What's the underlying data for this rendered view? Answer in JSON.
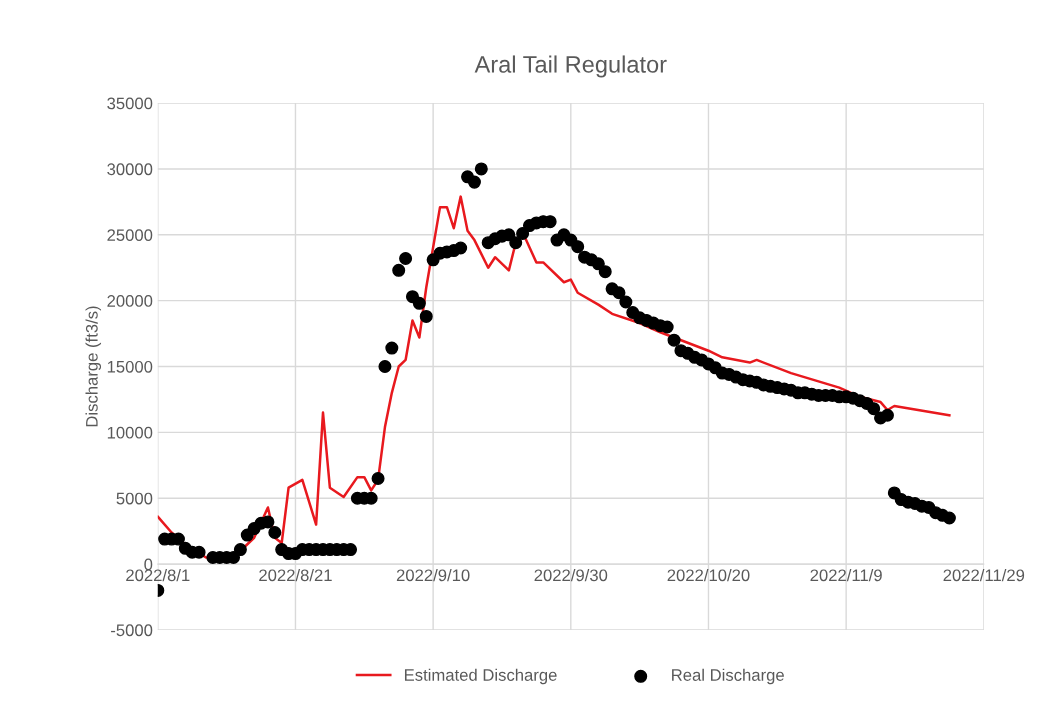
{
  "chart_data": {
    "type": "line",
    "title": "Aral Tail Regulator",
    "ylabel": "Discharge (ft3/s)",
    "xlim": [
      "2022-08-01",
      "2022-11-29"
    ],
    "xticks": [
      {
        "value": "2022-08-01",
        "label": "2022/8/1"
      },
      {
        "value": "2022-08-21",
        "label": "2022/8/21"
      },
      {
        "value": "2022-09-10",
        "label": "2022/9/10"
      },
      {
        "value": "2022-09-30",
        "label": "2022/9/30"
      },
      {
        "value": "2022-10-20",
        "label": "2022/10/20"
      },
      {
        "value": "2022-11-09",
        "label": "2022/11/9"
      },
      {
        "value": "2022-11-29",
        "label": "2022/11/29"
      }
    ],
    "ylim": [
      -5000,
      35000
    ],
    "yticks": [
      -5000,
      0,
      5000,
      10000,
      15000,
      20000,
      25000,
      30000,
      35000
    ],
    "grid": true,
    "legend": "bottom",
    "series": [
      {
        "name": "Estimated Discharge",
        "color": "#e8191e",
        "marker": "none",
        "line_style": "solid",
        "x": [
          "2022-08-01",
          "2022-08-03",
          "2022-08-05",
          "2022-08-08",
          "2022-08-12",
          "2022-08-15",
          "2022-08-17",
          "2022-08-18",
          "2022-08-19",
          "2022-08-20",
          "2022-08-22",
          "2022-08-24",
          "2022-08-25",
          "2022-08-26",
          "2022-08-28",
          "2022-08-30",
          "2022-08-31",
          "2022-09-01",
          "2022-09-02",
          "2022-09-03",
          "2022-09-04",
          "2022-09-05",
          "2022-09-06",
          "2022-09-07",
          "2022-09-08",
          "2022-09-09",
          "2022-09-11",
          "2022-09-12",
          "2022-09-13",
          "2022-09-14",
          "2022-09-15",
          "2022-09-16",
          "2022-09-18",
          "2022-09-19",
          "2022-09-21",
          "2022-09-22",
          "2022-09-23",
          "2022-09-25",
          "2022-09-26",
          "2022-09-29",
          "2022-09-30",
          "2022-10-01",
          "2022-10-04",
          "2022-10-06",
          "2022-10-10",
          "2022-10-13",
          "2022-10-20",
          "2022-10-22",
          "2022-10-26",
          "2022-10-27",
          "2022-11-01",
          "2022-11-08",
          "2022-11-11",
          "2022-11-14",
          "2022-11-15",
          "2022-11-16",
          "2022-11-24"
        ],
        "values": [
          3600,
          2400,
          1500,
          500,
          500,
          2000,
          4300,
          2000,
          1600,
          5800,
          6400,
          3000,
          11500,
          5800,
          5100,
          6600,
          6600,
          5600,
          6400,
          10400,
          13000,
          15000,
          15500,
          18500,
          17200,
          21000,
          27100,
          27100,
          25500,
          27900,
          25300,
          24600,
          22500,
          23300,
          22300,
          24400,
          25200,
          22900,
          22900,
          21400,
          21600,
          20600,
          19700,
          19000,
          18300,
          17600,
          16200,
          15700,
          15300,
          15500,
          14500,
          13400,
          12700,
          12300,
          11700,
          12000,
          11300
        ]
      },
      {
        "name": "Real Discharge",
        "type": "scatter",
        "color": "#000000",
        "marker": "circle",
        "x": [
          "2022-08-01",
          "2022-08-02",
          "2022-08-03",
          "2022-08-04",
          "2022-08-05",
          "2022-08-06",
          "2022-08-07",
          "2022-08-09",
          "2022-08-10",
          "2022-08-11",
          "2022-08-12",
          "2022-08-13",
          "2022-08-14",
          "2022-08-15",
          "2022-08-16",
          "2022-08-17",
          "2022-08-18",
          "2022-08-19",
          "2022-08-20",
          "2022-08-21",
          "2022-08-22",
          "2022-08-23",
          "2022-08-24",
          "2022-08-25",
          "2022-08-26",
          "2022-08-27",
          "2022-08-28",
          "2022-08-29",
          "2022-08-30",
          "2022-08-31",
          "2022-09-01",
          "2022-09-02",
          "2022-09-03",
          "2022-09-04",
          "2022-09-05",
          "2022-09-06",
          "2022-09-07",
          "2022-09-08",
          "2022-09-09",
          "2022-09-10",
          "2022-09-11",
          "2022-09-12",
          "2022-09-13",
          "2022-09-14",
          "2022-09-15",
          "2022-09-16",
          "2022-09-17",
          "2022-09-18",
          "2022-09-19",
          "2022-09-20",
          "2022-09-21",
          "2022-09-22",
          "2022-09-23",
          "2022-09-24",
          "2022-09-25",
          "2022-09-26",
          "2022-09-27",
          "2022-09-28",
          "2022-09-29",
          "2022-09-30",
          "2022-10-01",
          "2022-10-02",
          "2022-10-03",
          "2022-10-04",
          "2022-10-05",
          "2022-10-06",
          "2022-10-07",
          "2022-10-08",
          "2022-10-09",
          "2022-10-10",
          "2022-10-11",
          "2022-10-12",
          "2022-10-13",
          "2022-10-14",
          "2022-10-15",
          "2022-10-16",
          "2022-10-17",
          "2022-10-18",
          "2022-10-19",
          "2022-10-20",
          "2022-10-21",
          "2022-10-22",
          "2022-10-23",
          "2022-10-24",
          "2022-10-25",
          "2022-10-26",
          "2022-10-27",
          "2022-10-28",
          "2022-10-29",
          "2022-10-30",
          "2022-10-31",
          "2022-11-01",
          "2022-11-02",
          "2022-11-03",
          "2022-11-04",
          "2022-11-05",
          "2022-11-06",
          "2022-11-07",
          "2022-11-08",
          "2022-11-09",
          "2022-11-10",
          "2022-11-11",
          "2022-11-12",
          "2022-11-13",
          "2022-11-14",
          "2022-11-15",
          "2022-11-16",
          "2022-11-17",
          "2022-11-18",
          "2022-11-19",
          "2022-11-20",
          "2022-11-21",
          "2022-11-22",
          "2022-11-23",
          "2022-11-24"
        ],
        "values": [
          -2000,
          1900,
          1900,
          1900,
          1200,
          900,
          900,
          500,
          500,
          500,
          500,
          1100,
          2200,
          2700,
          3100,
          3200,
          2400,
          1100,
          800,
          800,
          1100,
          1100,
          1100,
          1100,
          1100,
          1100,
          1100,
          1100,
          5000,
          5000,
          5000,
          6500,
          15000,
          16400,
          22300,
          23200,
          20300,
          19800,
          18800,
          23100,
          23600,
          23700,
          23800,
          24000,
          29400,
          29000,
          30000,
          24400,
          24700,
          24900,
          25000,
          24400,
          25100,
          25700,
          25900,
          26000,
          26000,
          24600,
          25000,
          24600,
          24100,
          23300,
          23100,
          22800,
          22200,
          20900,
          20600,
          19900,
          19100,
          18700,
          18500,
          18300,
          18100,
          18000,
          17000,
          16200,
          16000,
          15700,
          15500,
          15200,
          14900,
          14500,
          14400,
          14200,
          14000,
          13900,
          13800,
          13600,
          13500,
          13400,
          13300,
          13200,
          13000,
          13000,
          12900,
          12800,
          12800,
          12800,
          12700,
          12700,
          12600,
          12400,
          12200,
          11800,
          11100,
          11300,
          5400,
          4900,
          4700,
          4600,
          4400,
          4300,
          3900,
          3700,
          3500
        ]
      }
    ]
  }
}
